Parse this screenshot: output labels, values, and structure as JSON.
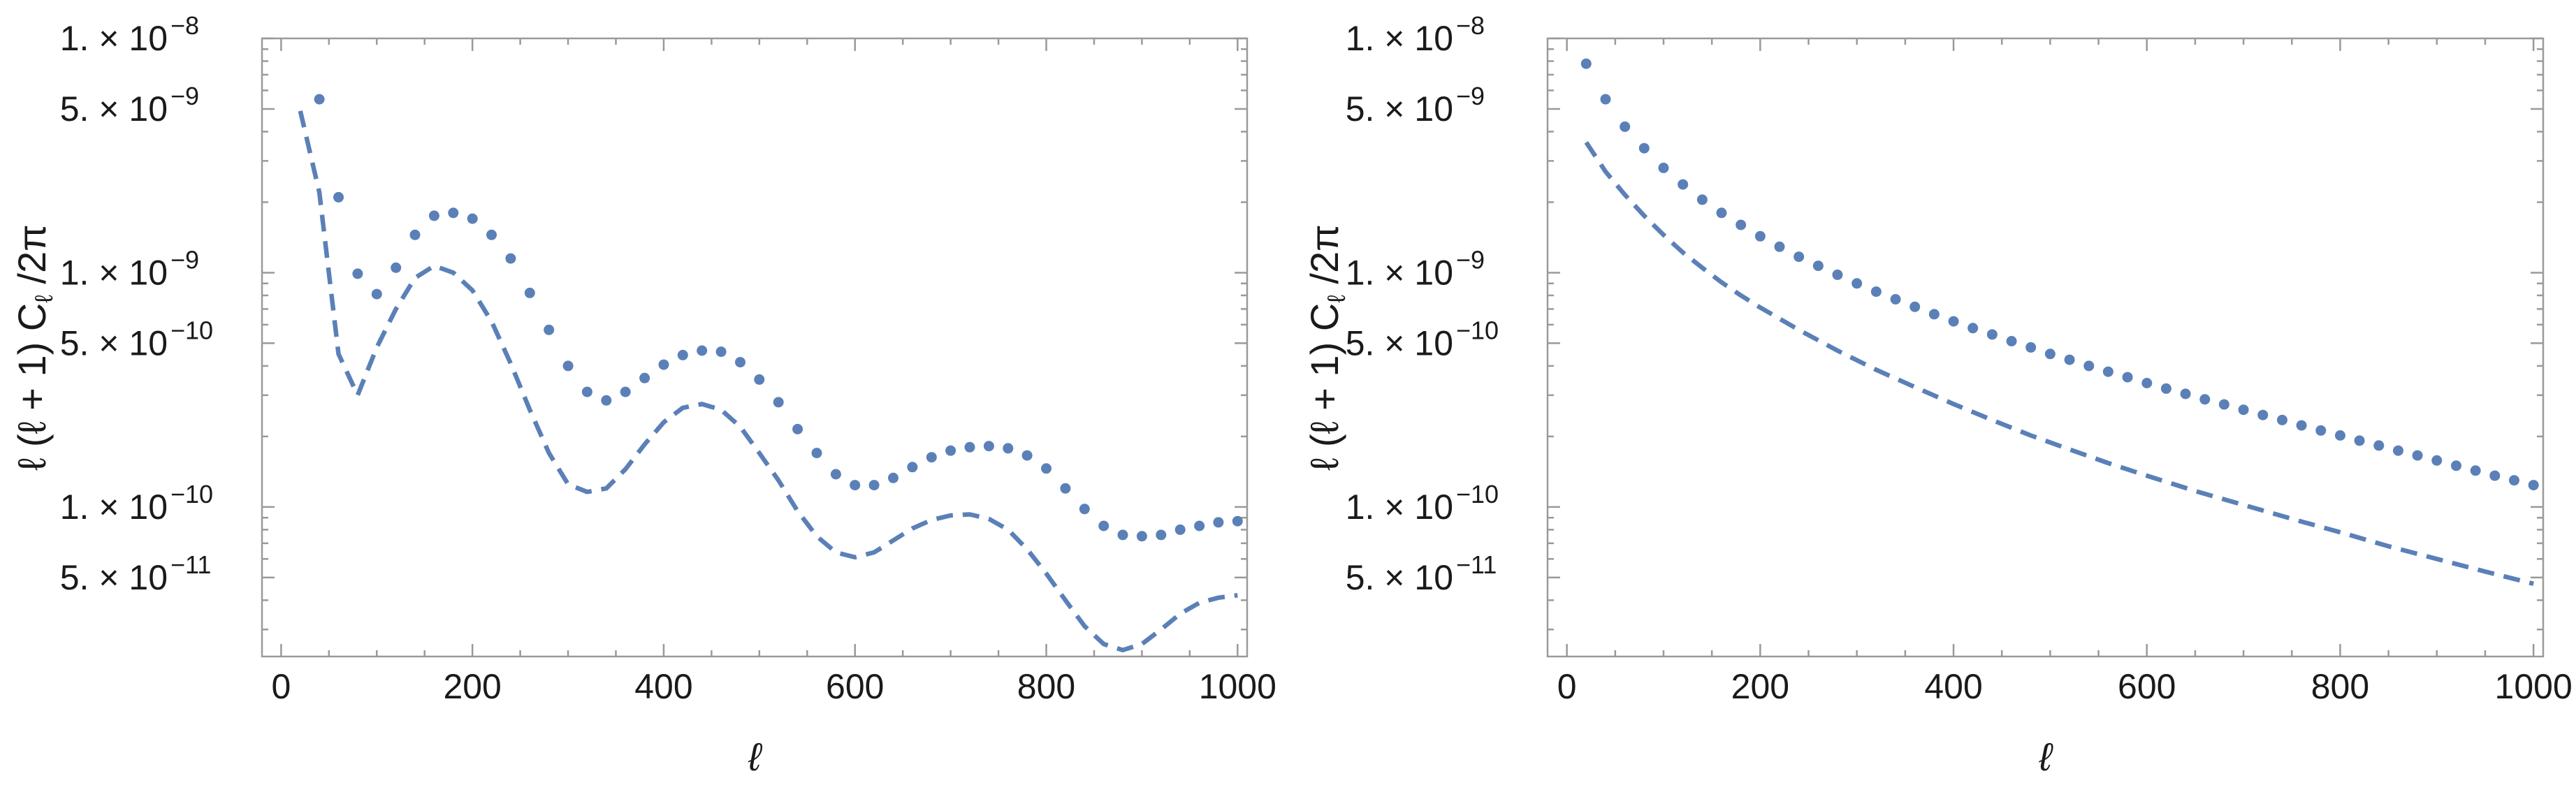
{
  "chart_data": [
    {
      "type": "line",
      "id": "left",
      "xlabel": "ℓ",
      "ylabel_parts": [
        "ℓ (ℓ + 1) C",
        "ℓ",
        " /2π"
      ],
      "xlim": [
        -20,
        1010
      ],
      "ylim": [
        2.3e-11,
        1e-08
      ],
      "yscale": "log",
      "x_ticks": [
        0,
        200,
        400,
        600,
        800,
        1000
      ],
      "y_ticks": [
        {
          "value": 1e-08,
          "mant": "1. × 10",
          "exp": "−8"
        },
        {
          "value": 5e-09,
          "mant": "5. × 10",
          "exp": "−9"
        },
        {
          "value": 1e-09,
          "mant": "1. × 10",
          "exp": "−9"
        },
        {
          "value": 5e-10,
          "mant": "5. × 10",
          "exp": "−10"
        },
        {
          "value": 1e-10,
          "mant": "1. × 10",
          "exp": "−10"
        },
        {
          "value": 5e-11,
          "mant": "5. × 10",
          "exp": "−11"
        }
      ],
      "series": [
        {
          "name": "dashed",
          "style": "dashed",
          "x": [
            20,
            40,
            60,
            80,
            100,
            120,
            140,
            160,
            180,
            200,
            220,
            240,
            260,
            280,
            300,
            320,
            340,
            360,
            380,
            400,
            420,
            440,
            460,
            480,
            500,
            520,
            540,
            560,
            580,
            600,
            620,
            640,
            660,
            680,
            700,
            720,
            740,
            760,
            780,
            800,
            820,
            840,
            860,
            880,
            900,
            920,
            940,
            960,
            980,
            1000
          ],
          "y": [
            4.9e-09,
            2.2e-09,
            4.5e-10,
            3e-10,
            4.8e-10,
            7e-10,
            9.5e-10,
            1.07e-09,
            1e-09,
            8.4e-10,
            6.2e-10,
            4.1e-10,
            2.6e-10,
            1.7e-10,
            1.25e-10,
            1.16e-10,
            1.2e-10,
            1.45e-10,
            1.85e-10,
            2.3e-10,
            2.65e-10,
            2.75e-10,
            2.6e-10,
            2.2e-10,
            1.7e-10,
            1.3e-10,
            9.6e-11,
            7.5e-11,
            6.4e-11,
            6.1e-11,
            6.4e-11,
            7.2e-11,
            8.1e-11,
            8.8e-11,
            9.2e-11,
            9.3e-11,
            8.9e-11,
            8e-11,
            6.6e-11,
            5.2e-11,
            4e-11,
            3.1e-11,
            2.6e-11,
            2.45e-11,
            2.6e-11,
            3e-11,
            3.5e-11,
            3.9e-11,
            4.1e-11,
            4.2e-11
          ]
        },
        {
          "name": "dotted",
          "style": "dots",
          "x": [
            40,
            60,
            80,
            100,
            120,
            140,
            160,
            180,
            200,
            220,
            240,
            260,
            280,
            300,
            320,
            340,
            360,
            380,
            400,
            420,
            440,
            460,
            480,
            500,
            520,
            540,
            560,
            580,
            600,
            620,
            640,
            660,
            680,
            700,
            720,
            740,
            760,
            780,
            800,
            820,
            840,
            860,
            880,
            900,
            920,
            940,
            960,
            980,
            1000
          ],
          "y": [
            5.5e-09,
            2.1e-09,
            9.9e-10,
            8.1e-10,
            1.05e-09,
            1.45e-09,
            1.75e-09,
            1.8e-09,
            1.7e-09,
            1.45e-09,
            1.15e-09,
            8.2e-10,
            5.7e-10,
            4e-10,
            3.1e-10,
            2.85e-10,
            3.1e-10,
            3.55e-10,
            4.05e-10,
            4.45e-10,
            4.65e-10,
            4.6e-10,
            4.15e-10,
            3.5e-10,
            2.8e-10,
            2.15e-10,
            1.7e-10,
            1.38e-10,
            1.24e-10,
            1.24e-10,
            1.33e-10,
            1.48e-10,
            1.63e-10,
            1.74e-10,
            1.8e-10,
            1.82e-10,
            1.78e-10,
            1.66e-10,
            1.46e-10,
            1.2e-10,
            9.8e-11,
            8.3e-11,
            7.6e-11,
            7.5e-11,
            7.6e-11,
            8e-11,
            8.3e-11,
            8.6e-11,
            8.7e-11
          ]
        }
      ]
    },
    {
      "type": "line",
      "id": "right",
      "xlabel": "ℓ",
      "ylabel_parts": [
        "ℓ (ℓ + 1) C",
        "ℓ",
        " /2π"
      ],
      "xlim": [
        -20,
        1010
      ],
      "ylim": [
        2.3e-11,
        1e-08
      ],
      "yscale": "log",
      "x_ticks": [
        0,
        200,
        400,
        600,
        800,
        1000
      ],
      "y_ticks": [
        {
          "value": 1e-08,
          "mant": "1. × 10",
          "exp": "−8"
        },
        {
          "value": 5e-09,
          "mant": "5. × 10",
          "exp": "−9"
        },
        {
          "value": 1e-09,
          "mant": "1. × 10",
          "exp": "−9"
        },
        {
          "value": 5e-10,
          "mant": "5. × 10",
          "exp": "−10"
        },
        {
          "value": 1e-10,
          "mant": "1. × 10",
          "exp": "−10"
        },
        {
          "value": 5e-11,
          "mant": "5. × 10",
          "exp": "−11"
        }
      ],
      "series": [
        {
          "name": "dashed",
          "style": "dashed",
          "x": [
            20,
            40,
            60,
            80,
            100,
            120,
            140,
            160,
            180,
            200,
            240,
            280,
            320,
            360,
            400,
            440,
            480,
            520,
            560,
            600,
            650,
            700,
            750,
            800,
            850,
            900,
            950,
            1000
          ],
          "y": [
            3.6e-09,
            2.7e-09,
            2.15e-09,
            1.75e-09,
            1.45e-09,
            1.22e-09,
            1.05e-09,
            9.1e-10,
            8e-10,
            7.1e-10,
            5.7e-10,
            4.65e-10,
            3.85e-10,
            3.25e-10,
            2.75e-10,
            2.35e-10,
            2.02e-10,
            1.76e-10,
            1.54e-10,
            1.36e-10,
            1.17e-10,
            1.02e-10,
            8.9e-11,
            7.8e-11,
            6.8e-11,
            6e-11,
            5.3e-11,
            4.7e-11
          ]
        },
        {
          "name": "dotted",
          "style": "dots",
          "x": [
            20,
            40,
            60,
            80,
            100,
            120,
            140,
            160,
            180,
            200,
            220,
            240,
            260,
            280,
            300,
            320,
            340,
            360,
            380,
            400,
            420,
            440,
            460,
            480,
            500,
            520,
            540,
            560,
            580,
            600,
            620,
            640,
            660,
            680,
            700,
            720,
            740,
            760,
            780,
            800,
            820,
            840,
            860,
            880,
            900,
            920,
            940,
            960,
            980,
            1000
          ],
          "y": [
            7.8e-09,
            5.5e-09,
            4.2e-09,
            3.4e-09,
            2.8e-09,
            2.38e-09,
            2.05e-09,
            1.8e-09,
            1.6e-09,
            1.43e-09,
            1.29e-09,
            1.17e-09,
            1.07e-09,
            9.8e-10,
            9e-10,
            8.3e-10,
            7.7e-10,
            7.15e-10,
            6.65e-10,
            6.2e-10,
            5.8e-10,
            5.45e-10,
            5.1e-10,
            4.8e-10,
            4.5e-10,
            4.25e-10,
            4e-10,
            3.78e-10,
            3.58e-10,
            3.38e-10,
            3.2e-10,
            3.04e-10,
            2.88e-10,
            2.74e-10,
            2.6e-10,
            2.47e-10,
            2.35e-10,
            2.23e-10,
            2.12e-10,
            2.02e-10,
            1.92e-10,
            1.83e-10,
            1.74e-10,
            1.66e-10,
            1.58e-10,
            1.5e-10,
            1.43e-10,
            1.36e-10,
            1.3e-10,
            1.24e-10
          ]
        }
      ]
    }
  ]
}
